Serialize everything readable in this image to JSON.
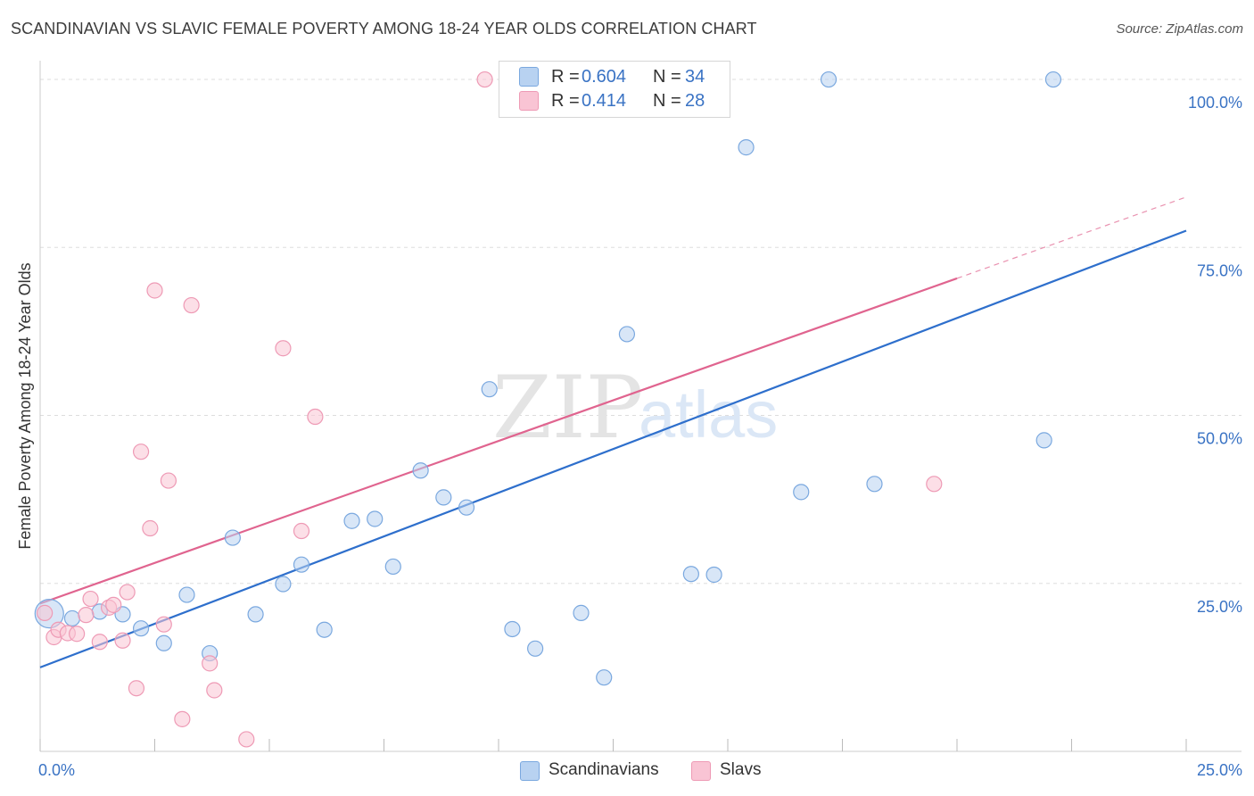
{
  "title": "SCANDINAVIAN VS SLAVIC FEMALE POVERTY AMONG 18-24 YEAR OLDS CORRELATION CHART",
  "source": "Source: ZipAtlas.com",
  "watermark": {
    "zip": "ZIP",
    "atlas": "atlas"
  },
  "legend_top": {
    "rows": [
      {
        "r_label": "R =",
        "r_value": "0.604",
        "n_label": "N =",
        "n_value": "34"
      },
      {
        "r_label": "R =",
        "r_value": "0.414",
        "n_label": "N =",
        "n_value": "28"
      }
    ]
  },
  "legend_bottom": {
    "items": [
      "Scandinavians",
      "Slavs"
    ]
  },
  "colors": {
    "scandinavians_fill": "#b8d2f1",
    "scandinavians_stroke": "#7aa8df",
    "scandinavians_line": "#2e6fcc",
    "slavs_fill": "#f9c4d4",
    "slavs_stroke": "#ee9ab5",
    "slavs_line": "#e0648f",
    "tick_text": "#3a73c4",
    "grid": "#dddddd"
  },
  "chart_data": {
    "type": "scatter",
    "title": "SCANDINAVIAN VS SLAVIC FEMALE POVERTY AMONG 18-24 YEAR OLDS CORRELATION CHART",
    "xlabel": "",
    "ylabel": "Female Poverty Among 18-24 Year Olds",
    "xlim": [
      0,
      25
    ],
    "ylim": [
      0,
      102
    ],
    "x_tick_labels": [
      "0.0%",
      "25.0%"
    ],
    "y_tick_labels": [
      "25.0%",
      "50.0%",
      "75.0%",
      "100.0%"
    ],
    "y_tick_values": [
      25,
      50,
      75,
      100
    ],
    "x_minor_ticks": [
      0,
      2.5,
      5,
      7.5,
      10,
      12.5,
      15,
      17.5,
      20,
      22.5,
      25
    ],
    "grid": true,
    "legend_position": "top-center",
    "series": [
      {
        "name": "Scandinavians",
        "r": 0.604,
        "n": 34,
        "trend": {
          "x": [
            0,
            25
          ],
          "y": [
            12.5,
            77.5
          ],
          "solid_to": 25
        },
        "points": [
          {
            "x": 0.2,
            "y": 20.5,
            "big": true
          },
          {
            "x": 0.7,
            "y": 19.8
          },
          {
            "x": 1.3,
            "y": 20.8
          },
          {
            "x": 1.8,
            "y": 20.4
          },
          {
            "x": 2.2,
            "y": 18.3
          },
          {
            "x": 2.7,
            "y": 16.1
          },
          {
            "x": 3.2,
            "y": 23.3
          },
          {
            "x": 3.7,
            "y": 14.6
          },
          {
            "x": 4.2,
            "y": 31.8
          },
          {
            "x": 4.7,
            "y": 20.4
          },
          {
            "x": 5.3,
            "y": 24.9
          },
          {
            "x": 5.7,
            "y": 27.8
          },
          {
            "x": 6.2,
            "y": 18.1
          },
          {
            "x": 6.8,
            "y": 34.3
          },
          {
            "x": 7.3,
            "y": 34.6
          },
          {
            "x": 7.7,
            "y": 27.5
          },
          {
            "x": 8.3,
            "y": 41.8
          },
          {
            "x": 8.8,
            "y": 37.8
          },
          {
            "x": 9.3,
            "y": 36.3
          },
          {
            "x": 9.8,
            "y": 53.9
          },
          {
            "x": 10.3,
            "y": 18.2
          },
          {
            "x": 10.8,
            "y": 15.3
          },
          {
            "x": 11.3,
            "y": 100
          },
          {
            "x": 11.8,
            "y": 20.6
          },
          {
            "x": 12.3,
            "y": 11.0
          },
          {
            "x": 12.8,
            "y": 62.1
          },
          {
            "x": 14.2,
            "y": 26.4
          },
          {
            "x": 14.7,
            "y": 26.3
          },
          {
            "x": 15.4,
            "y": 89.9
          },
          {
            "x": 16.6,
            "y": 38.6
          },
          {
            "x": 17.2,
            "y": 100
          },
          {
            "x": 18.2,
            "y": 39.8
          },
          {
            "x": 21.9,
            "y": 46.3
          },
          {
            "x": 22.1,
            "y": 100
          }
        ]
      },
      {
        "name": "Slavs",
        "r": 0.414,
        "n": 28,
        "trend": {
          "x": [
            0,
            25
          ],
          "y": [
            22.0,
            82.5
          ],
          "solid_to": 20
        },
        "points": [
          {
            "x": 0.1,
            "y": 20.6
          },
          {
            "x": 0.3,
            "y": 17.0
          },
          {
            "x": 0.4,
            "y": 18.1
          },
          {
            "x": 0.6,
            "y": 17.6
          },
          {
            "x": 0.8,
            "y": 17.5
          },
          {
            "x": 1.0,
            "y": 20.3
          },
          {
            "x": 1.1,
            "y": 22.7
          },
          {
            "x": 1.3,
            "y": 16.3
          },
          {
            "x": 1.5,
            "y": 21.4
          },
          {
            "x": 1.6,
            "y": 21.8
          },
          {
            "x": 1.8,
            "y": 16.5
          },
          {
            "x": 1.9,
            "y": 23.7
          },
          {
            "x": 2.1,
            "y": 9.4
          },
          {
            "x": 2.2,
            "y": 44.6
          },
          {
            "x": 2.4,
            "y": 33.2
          },
          {
            "x": 2.5,
            "y": 68.6
          },
          {
            "x": 2.7,
            "y": 18.9
          },
          {
            "x": 2.8,
            "y": 40.3
          },
          {
            "x": 3.1,
            "y": 4.8
          },
          {
            "x": 3.3,
            "y": 66.4
          },
          {
            "x": 3.7,
            "y": 13.1
          },
          {
            "x": 3.8,
            "y": 9.1
          },
          {
            "x": 4.5,
            "y": 1.8
          },
          {
            "x": 5.3,
            "y": 60.0
          },
          {
            "x": 5.7,
            "y": 32.8
          },
          {
            "x": 6.0,
            "y": 49.8
          },
          {
            "x": 9.7,
            "y": 100
          },
          {
            "x": 19.5,
            "y": 39.8
          }
        ]
      }
    ]
  }
}
